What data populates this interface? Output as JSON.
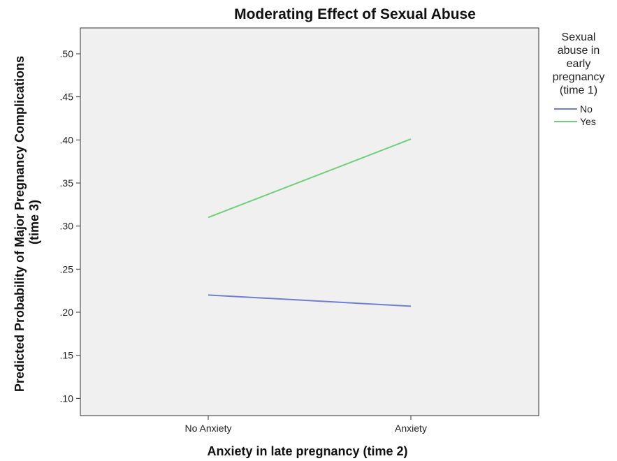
{
  "chart_data": {
    "type": "line",
    "title": "Moderating Effect of Sexual Abuse",
    "xlabel": "Anxiety in late pregnancy (time 2)",
    "ylabel_lines": [
      "Predicted Probability of Major Pregnancy Complications",
      "(time 3)"
    ],
    "categories": [
      "No Anxiety",
      "Anxiety"
    ],
    "ylim": [
      0.08,
      0.53
    ],
    "yticks": [
      0.1,
      0.15,
      0.2,
      0.25,
      0.3,
      0.35,
      0.4,
      0.45,
      0.5
    ],
    "ytick_labels": [
      ".10",
      ".15",
      ".20",
      ".25",
      ".30",
      ".35",
      ".40",
      ".45",
      ".50"
    ],
    "grid": false,
    "legend": {
      "placement": "right",
      "title_lines": [
        "Sexual",
        "abuse in",
        "early",
        "pregnancy",
        "(time 1)"
      ]
    },
    "series": [
      {
        "name": "No",
        "color": "#6f7fd0",
        "values": [
          0.22,
          0.207
        ]
      },
      {
        "name": "Yes",
        "color": "#6fd07c",
        "values": [
          0.31,
          0.401
        ]
      }
    ],
    "plot_background": "#f0f0f0"
  }
}
